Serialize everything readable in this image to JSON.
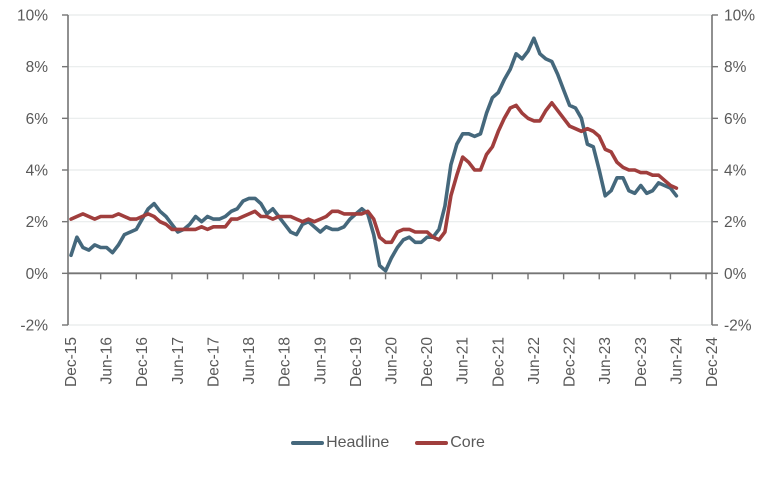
{
  "chart_data": {
    "type": "line",
    "title": "",
    "x_start": "Dec-15",
    "x_end": "Jun-24",
    "x_axis_extends_to": "Dec-24",
    "x_frequency": "monthly",
    "x_tick_labels": [
      "Dec-15",
      "Jun-16",
      "Dec-16",
      "Jun-17",
      "Dec-17",
      "Jun-18",
      "Dec-18",
      "Jun-19",
      "Dec-19",
      "Jun-20",
      "Dec-20",
      "Jun-21",
      "Dec-21",
      "Jun-22",
      "Dec-22",
      "Jun-23",
      "Dec-23",
      "Jun-24",
      "Dec-24"
    ],
    "x_tick_interval_months": 6,
    "y_tick_values": [
      -2,
      0,
      2,
      4,
      6,
      8,
      10
    ],
    "y_tick_labels": [
      "-2%",
      "0%",
      "2%",
      "4%",
      "6%",
      "8%",
      "10%"
    ],
    "ylim": [
      -2,
      10
    ],
    "y_axis_sides": [
      "left",
      "right"
    ],
    "grid": true,
    "legend_position": "bottom",
    "series": [
      {
        "name": "Headline",
        "color": "#45687c",
        "values": [
          0.7,
          1.4,
          1.0,
          0.9,
          1.1,
          1.0,
          1.0,
          0.8,
          1.1,
          1.5,
          1.6,
          1.7,
          2.1,
          2.5,
          2.7,
          2.4,
          2.2,
          1.9,
          1.6,
          1.7,
          1.9,
          2.2,
          2.0,
          2.2,
          2.1,
          2.1,
          2.2,
          2.4,
          2.5,
          2.8,
          2.9,
          2.9,
          2.7,
          2.3,
          2.5,
          2.2,
          1.9,
          1.6,
          1.5,
          1.9,
          2.0,
          1.8,
          1.6,
          1.8,
          1.7,
          1.7,
          1.8,
          2.1,
          2.3,
          2.5,
          2.3,
          1.5,
          0.3,
          0.1,
          0.6,
          1.0,
          1.3,
          1.4,
          1.2,
          1.2,
          1.4,
          1.4,
          1.7,
          2.6,
          4.2,
          5.0,
          5.4,
          5.4,
          5.3,
          5.4,
          6.2,
          6.8,
          7.0,
          7.5,
          7.9,
          8.5,
          8.3,
          8.6,
          9.1,
          8.5,
          8.3,
          8.2,
          7.7,
          7.1,
          6.5,
          6.4,
          6.0,
          5.0,
          4.9,
          4.0,
          3.0,
          3.2,
          3.7,
          3.7,
          3.2,
          3.1,
          3.4,
          3.1,
          3.2,
          3.5,
          3.4,
          3.3,
          3.0
        ]
      },
      {
        "name": "Core",
        "color": "#a03e3d",
        "values": [
          2.1,
          2.2,
          2.3,
          2.2,
          2.1,
          2.2,
          2.2,
          2.2,
          2.3,
          2.2,
          2.1,
          2.1,
          2.2,
          2.3,
          2.2,
          2.0,
          1.9,
          1.7,
          1.7,
          1.7,
          1.7,
          1.7,
          1.8,
          1.7,
          1.8,
          1.8,
          1.8,
          2.1,
          2.1,
          2.2,
          2.3,
          2.4,
          2.2,
          2.2,
          2.1,
          2.2,
          2.2,
          2.2,
          2.1,
          2.0,
          2.1,
          2.0,
          2.1,
          2.2,
          2.4,
          2.4,
          2.3,
          2.3,
          2.3,
          2.3,
          2.4,
          2.1,
          1.4,
          1.2,
          1.2,
          1.6,
          1.7,
          1.7,
          1.6,
          1.6,
          1.6,
          1.4,
          1.3,
          1.6,
          3.0,
          3.8,
          4.5,
          4.3,
          4.0,
          4.0,
          4.6,
          4.9,
          5.5,
          6.0,
          6.4,
          6.5,
          6.2,
          6.0,
          5.9,
          5.9,
          6.3,
          6.6,
          6.3,
          6.0,
          5.7,
          5.6,
          5.5,
          5.6,
          5.5,
          5.3,
          4.8,
          4.7,
          4.3,
          4.1,
          4.0,
          4.0,
          3.9,
          3.9,
          3.8,
          3.8,
          3.6,
          3.4,
          3.3
        ]
      }
    ]
  },
  "legend": {
    "headline_label": "Headline",
    "core_label": "Core"
  },
  "colors": {
    "headline_line": "#45687c",
    "core_line": "#a03e3d",
    "axis": "#757575",
    "gridline": "#e8ebeb",
    "tick_label": "#595959",
    "background": "#ffffff"
  }
}
